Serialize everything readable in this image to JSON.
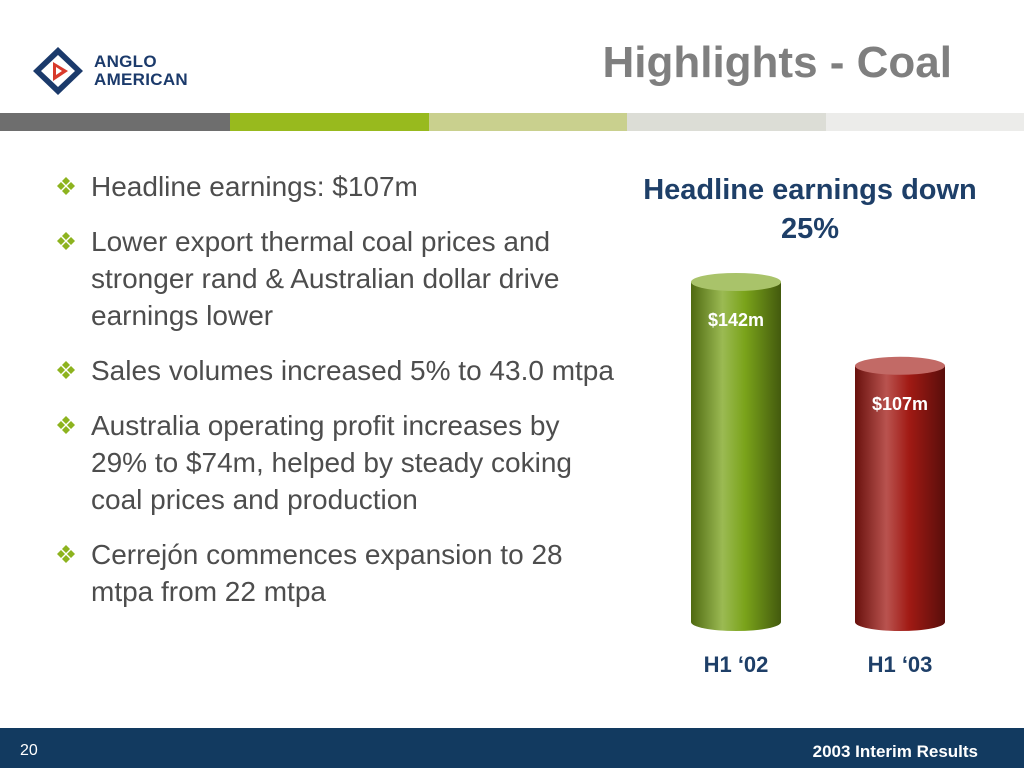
{
  "logo": {
    "line1": "ANGLO",
    "line2": "AMERICAN"
  },
  "title": "Highlights - Coal",
  "stripe_colors": [
    "#6e6e6e",
    "#98ba1e",
    "#c9d08e",
    "#dcddd6",
    "#ececea"
  ],
  "bullets": [
    "Headline earnings: $107m",
    "Lower export thermal coal prices and stronger rand & Australian dollar drive earnings lower",
    "Sales volumes increased 5% to 43.0 mtpa",
    "Australia operating profit increases by 29% to $74m, helped by steady coking coal prices and production",
    "Cerrejón commences expansion to 28 mtpa from 22 mtpa"
  ],
  "chart_data": {
    "type": "bar",
    "title": "Headline earnings down 25%",
    "categories": [
      "H1 ‘02",
      "H1 ‘03"
    ],
    "values": [
      142,
      107
    ],
    "data_labels": [
      "$142m",
      "$107m"
    ],
    "colors": [
      "#7aa31a",
      "#a11a14"
    ],
    "ylim": [
      0,
      142
    ],
    "xlabel": "",
    "ylabel": ""
  },
  "footer": {
    "page_number": "20",
    "label": "2003 Interim Results"
  }
}
